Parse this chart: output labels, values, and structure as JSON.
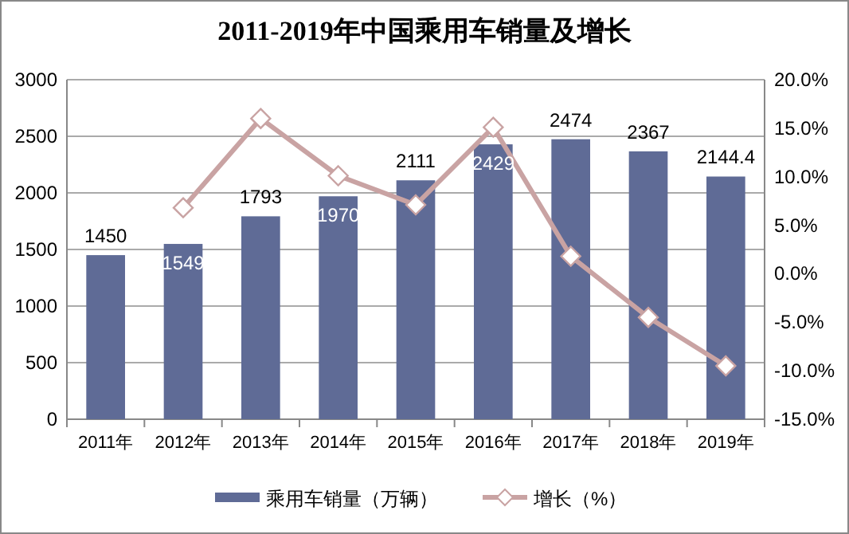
{
  "chart_data": {
    "type": "bar",
    "title": "2011-2019年中国乘用车销量及增长",
    "categories": [
      "2011年",
      "2012年",
      "2013年",
      "2014年",
      "2015年",
      "2016年",
      "2017年",
      "2018年",
      "2019年"
    ],
    "series": [
      {
        "name": "乘用车销量（万辆）",
        "color": "#5f6b96",
        "values": [
          1450,
          1549,
          1793,
          1970,
          2111,
          2429,
          2474,
          2367,
          2144.4
        ],
        "value_labels": [
          "1450",
          "1549",
          "1793",
          "1970",
          "2111",
          "2429",
          "2474",
          "2367",
          "2144.4"
        ]
      },
      {
        "name": "增长（%）",
        "type": "line",
        "axis": "y2",
        "color": "#c9a3a3",
        "marker": "diamond",
        "values": [
          null,
          6.8,
          16.0,
          10.1,
          7.1,
          15.1,
          1.8,
          -4.5,
          -9.5
        ]
      }
    ],
    "ylim": [
      0,
      3000
    ],
    "yticks": [
      0,
      500,
      1000,
      1500,
      2000,
      2500,
      3000
    ],
    "y2lim": [
      -15,
      20
    ],
    "y2ticks": [
      {
        "value": -15,
        "label": "-15.0%"
      },
      {
        "value": -10,
        "label": "-10.0%"
      },
      {
        "value": -5,
        "label": "-5.0%"
      },
      {
        "value": 0,
        "label": "0.0%"
      },
      {
        "value": 5,
        "label": "5.0%"
      },
      {
        "value": 10,
        "label": "10.0%"
      },
      {
        "value": 15,
        "label": "15.0%"
      },
      {
        "value": 20,
        "label": "20.0%"
      }
    ],
    "grid": "y",
    "legend": "bottom"
  }
}
